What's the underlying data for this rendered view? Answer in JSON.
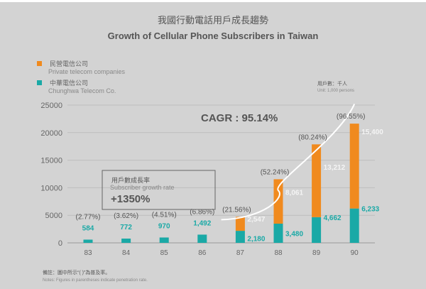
{
  "chart_data": {
    "type": "bar",
    "stacked": true,
    "title": "我國行動電話用戶成長趨勢",
    "subtitle": "Growth of Cellular Phone Subscribers in Taiwan",
    "unit_zh": "用戶數：千人",
    "unit_en": "Unit: 1,000 persons",
    "x_suffix": "年",
    "categories": [
      "83",
      "84",
      "85",
      "86",
      "87",
      "88",
      "89",
      "90"
    ],
    "series": [
      {
        "name_zh": "中華電信公司",
        "name": "Chunghwa Telecom Co.",
        "color": "#1aa9a6",
        "values": [
          584,
          772,
          970,
          1492,
          2180,
          3480,
          4662,
          6233
        ],
        "labels": [
          "584",
          "772",
          "970",
          "1,492",
          "2,180",
          "3,480",
          "4,662",
          "6,233"
        ]
      },
      {
        "name_zh": "民營電信公司",
        "name": "Private telecom companies",
        "color": "#f08a1e",
        "values": [
          0,
          0,
          0,
          0,
          2547,
          8061,
          13212,
          15400
        ],
        "labels": [
          "",
          "",
          "",
          "",
          "2,547",
          "8,061",
          "13,212",
          "15,400"
        ]
      }
    ],
    "penetration": [
      "(2.77%)",
      "(3.62%)",
      "(4.51%)",
      "(6.86%)",
      "(21.56%)",
      "(52.24%)",
      "(80.24%)",
      "(96.55%)"
    ],
    "yticks": [
      "0",
      "5000",
      "10000",
      "15000",
      "20000",
      "25000"
    ],
    "ylim": [
      0,
      25000
    ],
    "grid": true,
    "legend_position": "top-left",
    "cagr": "CAGR : 95.14%",
    "growth_box": {
      "zh": "用戶數成長率",
      "en": "Subscriber growth rate",
      "value": "+1350%"
    },
    "note_zh": "備註：圖中所示“( )”為普及率。",
    "note_en": "Notes: Figures in parentheses indicate penetration rate."
  }
}
